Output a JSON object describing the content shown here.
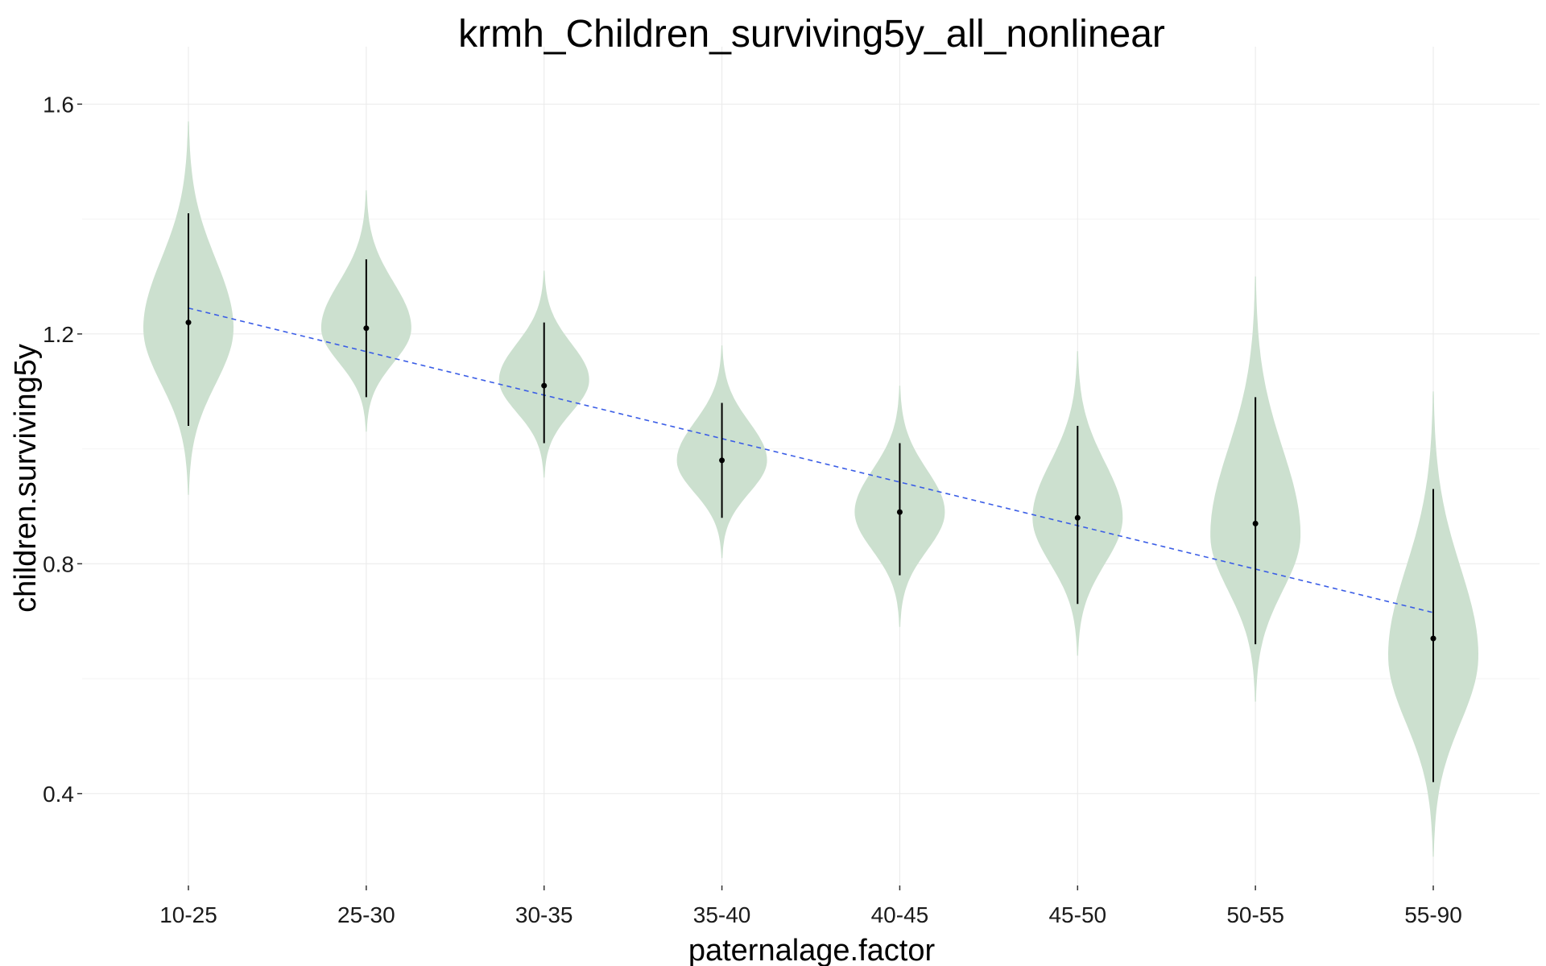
{
  "chart_data": {
    "type": "violin",
    "title": "krmh_Children_surviving5y_all_nonlinear",
    "xlabel": "paternalage.factor",
    "ylabel": "children.surviving5y",
    "categories": [
      "10-25",
      "25-30",
      "30-35",
      "35-40",
      "40-45",
      "45-50",
      "50-55",
      "55-90"
    ],
    "ylim": [
      0.24,
      1.7
    ],
    "yticks": [
      0.4,
      0.8,
      1.2,
      1.6
    ],
    "ytick_labels": [
      "0.4",
      "0.8",
      "1.2",
      "1.6"
    ],
    "grid": true,
    "legend": "none",
    "violins": [
      {
        "category": "10-25",
        "ymin": 0.92,
        "ymax": 1.57,
        "mode": 1.21,
        "median": 1.22,
        "lower": 1.04,
        "upper": 1.41
      },
      {
        "category": "25-30",
        "ymin": 1.03,
        "ymax": 1.45,
        "mode": 1.21,
        "median": 1.21,
        "lower": 1.09,
        "upper": 1.33
      },
      {
        "category": "30-35",
        "ymin": 0.95,
        "ymax": 1.31,
        "mode": 1.12,
        "median": 1.11,
        "lower": 1.01,
        "upper": 1.22
      },
      {
        "category": "35-40",
        "ymin": 0.81,
        "ymax": 1.18,
        "mode": 0.98,
        "median": 0.98,
        "lower": 0.88,
        "upper": 1.08
      },
      {
        "category": "40-45",
        "ymin": 0.69,
        "ymax": 1.11,
        "mode": 0.89,
        "median": 0.89,
        "lower": 0.78,
        "upper": 1.01
      },
      {
        "category": "45-50",
        "ymin": 0.64,
        "ymax": 1.17,
        "mode": 0.88,
        "median": 0.88,
        "lower": 0.73,
        "upper": 1.04
      },
      {
        "category": "50-55",
        "ymin": 0.56,
        "ymax": 1.3,
        "mode": 0.85,
        "median": 0.87,
        "lower": 0.66,
        "upper": 1.09
      },
      {
        "category": "55-90",
        "ymin": 0.29,
        "ymax": 1.1,
        "mode": 0.64,
        "median": 0.67,
        "lower": 0.42,
        "upper": 0.93
      }
    ],
    "trend_line": {
      "y_start": 1.245,
      "y_end": 0.715,
      "style": "dashed"
    },
    "colors": {
      "violin_fill": "#cce0cf",
      "trend_line": "#3a5de6",
      "point": "#000000",
      "errorbar": "#000000"
    }
  }
}
